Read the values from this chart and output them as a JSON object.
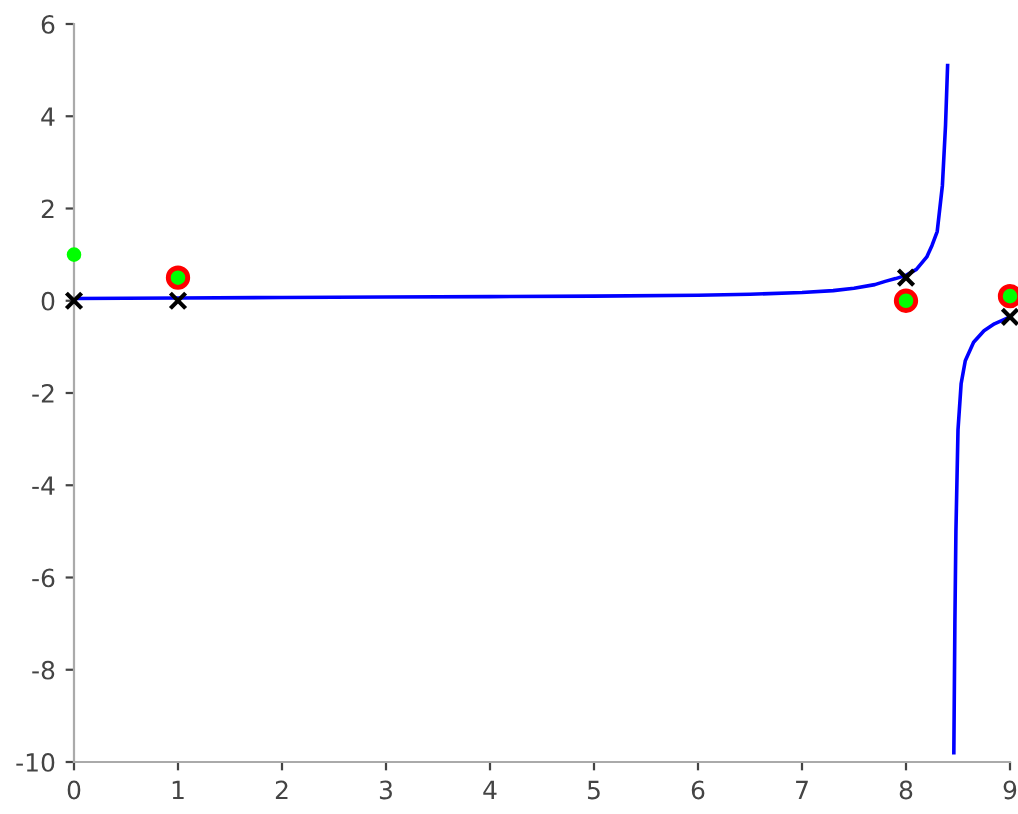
{
  "chart_data": {
    "type": "line",
    "xlim": [
      0,
      9
    ],
    "ylim": [
      -10,
      6
    ],
    "xticks": [
      0,
      1,
      2,
      3,
      4,
      5,
      6,
      7,
      8,
      9
    ],
    "yticks": [
      -10,
      -8,
      -6,
      -4,
      -2,
      0,
      2,
      4,
      6
    ],
    "grid": false,
    "series": [
      {
        "color": "#0000ff",
        "marker": "none",
        "x": [
          0,
          1,
          2,
          3,
          4,
          5,
          6,
          6.5,
          7,
          7.3,
          7.5,
          7.7,
          7.8,
          7.9,
          8,
          8.1,
          8.2,
          8.25,
          8.3,
          8.35,
          8.38,
          8.4,
          8.43,
          8.46,
          8.47,
          8.48,
          8.5,
          8.53,
          8.57,
          8.65,
          8.75,
          8.85,
          9
        ],
        "values": [
          0.05,
          0.06,
          0.07,
          0.08,
          0.09,
          0.1,
          0.12,
          0.14,
          0.18,
          0.22,
          0.27,
          0.35,
          0.42,
          0.48,
          0.55,
          0.68,
          0.95,
          1.2,
          1.5,
          2.5,
          3.8,
          5.1,
          null,
          -9.8,
          -7,
          -5,
          -2.8,
          -1.8,
          -1.3,
          -0.9,
          -0.65,
          -0.5,
          -0.35
        ]
      },
      {
        "type": "scatter",
        "color": "#ff0000",
        "marker": "circle",
        "x": [
          1,
          8,
          9
        ],
        "values": [
          0.5,
          0,
          0.1
        ]
      },
      {
        "type": "scatter",
        "color": "#00ff00",
        "marker": "circle",
        "x": [
          0,
          1,
          8,
          9
        ],
        "values": [
          1,
          0.5,
          0,
          0.1
        ]
      },
      {
        "type": "scatter",
        "color": "#000000",
        "marker": "cross",
        "x": [
          0,
          1,
          8,
          9
        ],
        "values": [
          0,
          0,
          0.5,
          -0.35
        ]
      }
    ]
  }
}
